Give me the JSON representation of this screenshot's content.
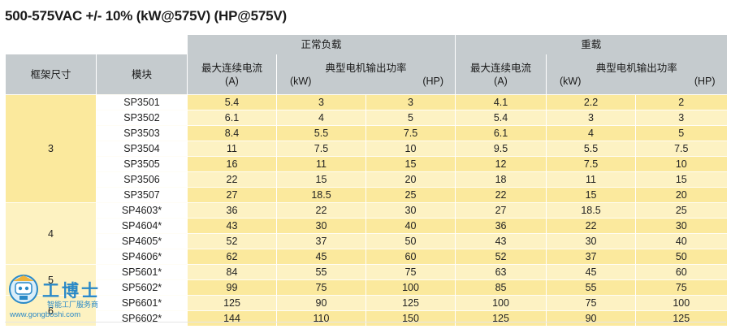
{
  "title": "500-575VAC +/- 10% (kW@575V) (HP@575V)",
  "header": {
    "frame_size": "框架尺寸",
    "module": "模块",
    "normal_duty": "正常负载",
    "heavy_duty": "重载",
    "max_current": "最大连续电流",
    "current_unit": "(A)",
    "motor_power": "典型电机输出功率",
    "kw_unit": "(kW)",
    "hp_unit": "(HP)"
  },
  "frames": [
    {
      "label": "3",
      "rows": 7
    },
    {
      "label": "4",
      "rows": 4
    },
    {
      "label": "5",
      "rows": 2
    },
    {
      "label": "6",
      "rows": 2
    }
  ],
  "rows": [
    {
      "module": "SP3501",
      "n_a": "5.4",
      "n_kw": "3",
      "n_hp": "3",
      "h_a": "4.1",
      "h_kw": "2.2",
      "h_hp": "2"
    },
    {
      "module": "SP3502",
      "n_a": "6.1",
      "n_kw": "4",
      "n_hp": "5",
      "h_a": "5.4",
      "h_kw": "3",
      "h_hp": "3"
    },
    {
      "module": "SP3503",
      "n_a": "8.4",
      "n_kw": "5.5",
      "n_hp": "7.5",
      "h_a": "6.1",
      "h_kw": "4",
      "h_hp": "5"
    },
    {
      "module": "SP3504",
      "n_a": "11",
      "n_kw": "7.5",
      "n_hp": "10",
      "h_a": "9.5",
      "h_kw": "5.5",
      "h_hp": "7.5"
    },
    {
      "module": "SP3505",
      "n_a": "16",
      "n_kw": "11",
      "n_hp": "15",
      "h_a": "12",
      "h_kw": "7.5",
      "h_hp": "10"
    },
    {
      "module": "SP3506",
      "n_a": "22",
      "n_kw": "15",
      "n_hp": "20",
      "h_a": "18",
      "h_kw": "11",
      "h_hp": "15"
    },
    {
      "module": "SP3507",
      "n_a": "27",
      "n_kw": "18.5",
      "n_hp": "25",
      "h_a": "22",
      "h_kw": "15",
      "h_hp": "20"
    },
    {
      "module": "SP4603*",
      "n_a": "36",
      "n_kw": "22",
      "n_hp": "30",
      "h_a": "27",
      "h_kw": "18.5",
      "h_hp": "25"
    },
    {
      "module": "SP4604*",
      "n_a": "43",
      "n_kw": "30",
      "n_hp": "40",
      "h_a": "36",
      "h_kw": "22",
      "h_hp": "30"
    },
    {
      "module": "SP4605*",
      "n_a": "52",
      "n_kw": "37",
      "n_hp": "50",
      "h_a": "43",
      "h_kw": "30",
      "h_hp": "40"
    },
    {
      "module": "SP4606*",
      "n_a": "62",
      "n_kw": "45",
      "n_hp": "60",
      "h_a": "52",
      "h_kw": "37",
      "h_hp": "50"
    },
    {
      "module": "SP5601*",
      "n_a": "84",
      "n_kw": "55",
      "n_hp": "75",
      "h_a": "63",
      "h_kw": "45",
      "h_hp": "60"
    },
    {
      "module": "SP5602*",
      "n_a": "99",
      "n_kw": "75",
      "n_hp": "100",
      "h_a": "85",
      "h_kw": "55",
      "h_hp": "75"
    },
    {
      "module": "SP6601*",
      "n_a": "125",
      "n_kw": "90",
      "n_hp": "125",
      "h_a": "100",
      "h_kw": "75",
      "h_hp": "100"
    },
    {
      "module": "SP6602*",
      "n_a": "144",
      "n_kw": "110",
      "n_hp": "150",
      "h_a": "125",
      "h_kw": "90",
      "h_hp": "125"
    }
  ],
  "watermark": {
    "name": "工博士",
    "tagline": "智能工厂服务商",
    "url": "www.gongboshi.com"
  },
  "colors": {
    "header_bg": "#c5cbce",
    "row_yellow": "#fbe99d",
    "row_light": "#fdf2c3",
    "watermark_blue": "#2a89c7"
  }
}
